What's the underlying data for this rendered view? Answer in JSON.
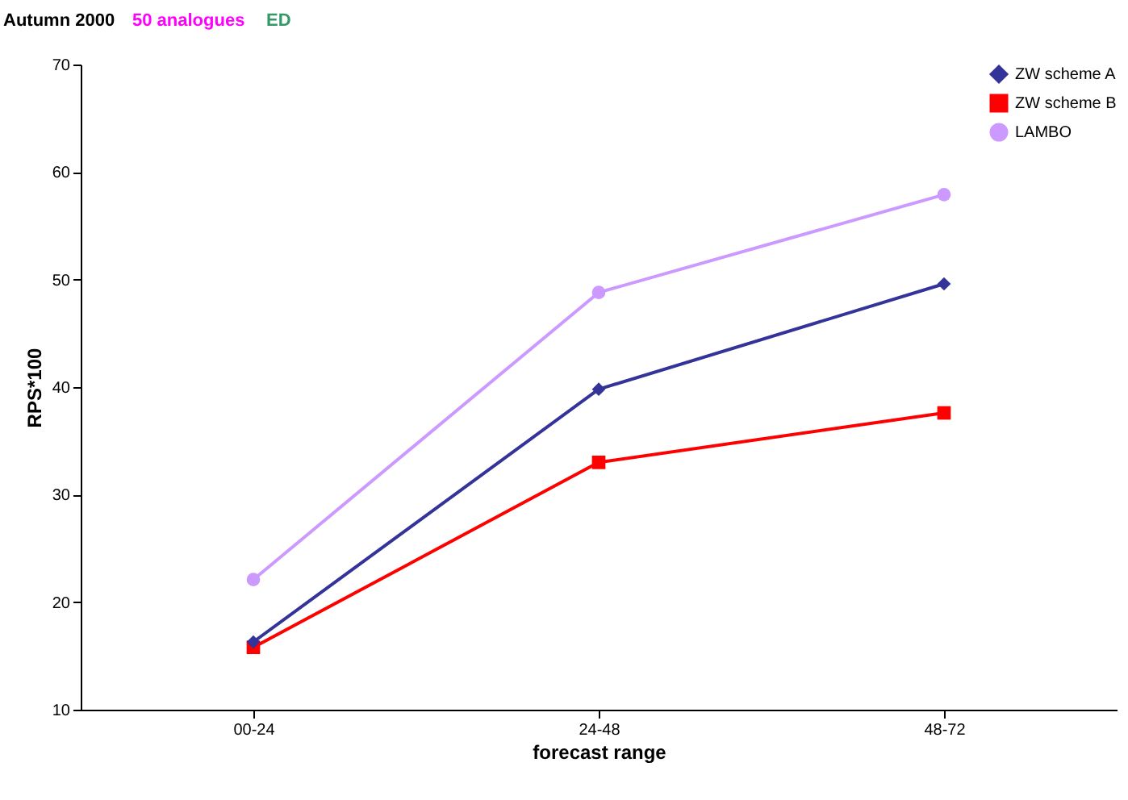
{
  "chart_data": {
    "type": "line",
    "title": "Autumn 2000",
    "annotations": [
      "50 analogues",
      "ED"
    ],
    "xlabel": "forecast range",
    "ylabel": "RPS*100",
    "categories": [
      "00-24",
      "24-48",
      "48-72"
    ],
    "series": [
      {
        "name": "ZW scheme A",
        "color": "#333399",
        "marker": "diamond",
        "values": [
          16.3,
          39.8,
          49.6
        ]
      },
      {
        "name": "ZW scheme B",
        "color": "#ff0000",
        "marker": "square",
        "values": [
          15.8,
          33.0,
          37.6
        ]
      },
      {
        "name": "LAMBO",
        "color": "#cc99ff",
        "marker": "circle",
        "values": [
          22.1,
          48.8,
          57.9
        ]
      }
    ],
    "ylim": [
      10,
      70
    ],
    "yticks": [
      10,
      20,
      30,
      40,
      50,
      60,
      70
    ],
    "grid": false,
    "legend": "top right",
    "line_style": "solid"
  }
}
